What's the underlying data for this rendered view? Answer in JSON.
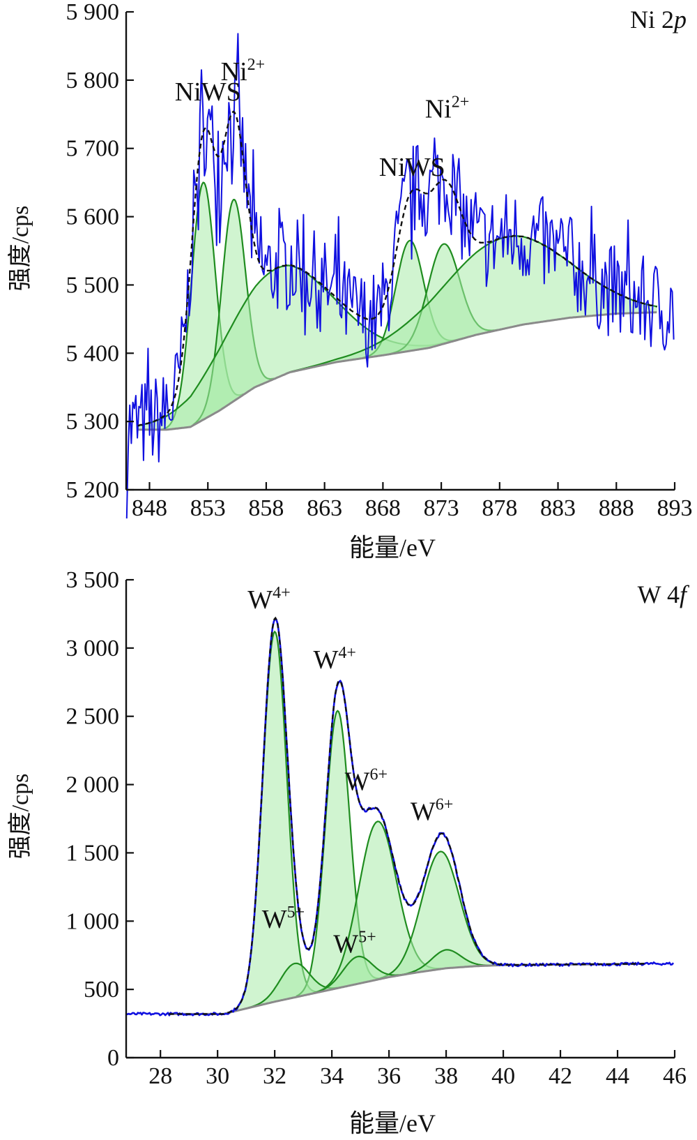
{
  "chart_data": [
    {
      "type": "line",
      "corner_label": {
        "main": "Ni 2",
        "italic": "p"
      },
      "xlabel": "能量/eV",
      "ylabel": "强度/cps",
      "xlim": [
        846,
        893
      ],
      "ylim": [
        5200,
        5900
      ],
      "xticks": [
        848,
        853,
        858,
        863,
        868,
        873,
        878,
        883,
        888,
        893
      ],
      "yticks": [
        5200,
        5300,
        5400,
        5500,
        5600,
        5700,
        5800,
        5900
      ],
      "ytick_labels": [
        "5 200",
        "5 300",
        "5 400",
        "5 500",
        "5 600",
        "5 700",
        "5 800",
        "5 900"
      ],
      "peak_labels": [
        {
          "text": "NiWS",
          "sup": "",
          "x": 853.0,
          "y": 5770
        },
        {
          "text": "Ni",
          "sup": "2+",
          "x": 856.0,
          "y": 5800
        },
        {
          "text": "NiWS",
          "sup": "",
          "x": 870.5,
          "y": 5660
        },
        {
          "text": "Ni",
          "sup": "2+",
          "x": 873.5,
          "y": 5745
        }
      ],
      "background": {
        "x": [
          847,
          849.5,
          851.5,
          854,
          857,
          860,
          864,
          868,
          872,
          876,
          880,
          884,
          888,
          891.5
        ],
        "y": [
          5288,
          5288,
          5292,
          5316,
          5350,
          5372,
          5387,
          5397,
          5408,
          5427,
          5442,
          5452,
          5458,
          5460
        ]
      },
      "components": [
        {
          "center": 852.6,
          "fwhm": 2.4,
          "height": 5650
        },
        {
          "center": 855.2,
          "fwhm": 2.4,
          "height": 5625
        },
        {
          "center": 859.0,
          "fwhm": 11.0,
          "height": 5525
        },
        {
          "center": 870.3,
          "fwhm": 2.8,
          "height": 5565
        },
        {
          "center": 873.2,
          "fwhm": 3.2,
          "height": 5560
        },
        {
          "center": 878.5,
          "fwhm": 13.0,
          "height": 5570
        }
      ],
      "series": [
        {
          "name": "",
          "color": "#1010e0",
          "style": "raw",
          "x": [],
          "y": []
        },
        {
          "name": "",
          "color": "#111111",
          "style": "envelope",
          "x": [],
          "y": []
        }
      ],
      "colors": {
        "raw": "#1010e0",
        "component_fill": "#a9eba9",
        "component_line": "#1f8c1f",
        "envelope": "#111111",
        "background": "#8a8a8a"
      }
    },
    {
      "type": "line",
      "corner_label": {
        "main": "W 4",
        "italic": "f"
      },
      "xlabel": "能量/eV",
      "ylabel": "强度/cps",
      "xlim": [
        26.8,
        46
      ],
      "ylim": [
        0,
        3500
      ],
      "xticks": [
        28,
        30,
        32,
        34,
        36,
        38,
        40,
        42,
        44,
        46
      ],
      "yticks": [
        0,
        500,
        1000,
        1500,
        2000,
        2500,
        3000,
        3500
      ],
      "ytick_labels": [
        "0",
        "500",
        "1 000",
        "1 500",
        "2 000",
        "2 500",
        "3 000",
        "3 500"
      ],
      "peak_labels": [
        {
          "text": "W",
          "sup": "4+",
          "x": 31.8,
          "y": 3290
        },
        {
          "text": "W",
          "sup": "4+",
          "x": 34.1,
          "y": 2850
        },
        {
          "text": "W",
          "sup": "6+",
          "x": 35.2,
          "y": 1960
        },
        {
          "text": "W",
          "sup": "6+",
          "x": 37.5,
          "y": 1740
        },
        {
          "text": "W",
          "sup": "5+",
          "x": 32.3,
          "y": 950
        },
        {
          "text": "W",
          "sup": "5+",
          "x": 34.8,
          "y": 770
        }
      ],
      "background": {
        "x": [
          28.3,
          30.2,
          31.0,
          32.0,
          33.0,
          34.0,
          35.0,
          36.0,
          37.0,
          38.0,
          39.0,
          40.0,
          42.0,
          44.0,
          45.0
        ],
        "y": [
          320,
          320,
          360,
          410,
          455,
          500,
          545,
          590,
          625,
          655,
          670,
          678,
          682,
          685,
          688
        ]
      },
      "components": [
        {
          "center": 32.0,
          "fwhm": 1.0,
          "height": 3120
        },
        {
          "center": 34.2,
          "fwhm": 1.0,
          "height": 2540
        },
        {
          "center": 35.6,
          "fwhm": 1.55,
          "height": 1730
        },
        {
          "center": 37.8,
          "fwhm": 1.55,
          "height": 1510
        },
        {
          "center": 32.7,
          "fwhm": 1.2,
          "height": 690
        },
        {
          "center": 34.9,
          "fwhm": 1.2,
          "height": 740
        },
        {
          "center": 38.0,
          "fwhm": 1.2,
          "height": 790
        }
      ],
      "series": [
        {
          "name": "",
          "color": "#1010e0",
          "style": "raw",
          "x": [],
          "y": []
        },
        {
          "name": "",
          "color": "#111111",
          "style": "envelope",
          "x": [],
          "y": []
        }
      ],
      "colors": {
        "raw": "#1010e0",
        "component_fill": "#a9eba9",
        "component_line": "#1f8c1f",
        "envelope": "#111111",
        "background": "#8a8a8a"
      }
    }
  ]
}
